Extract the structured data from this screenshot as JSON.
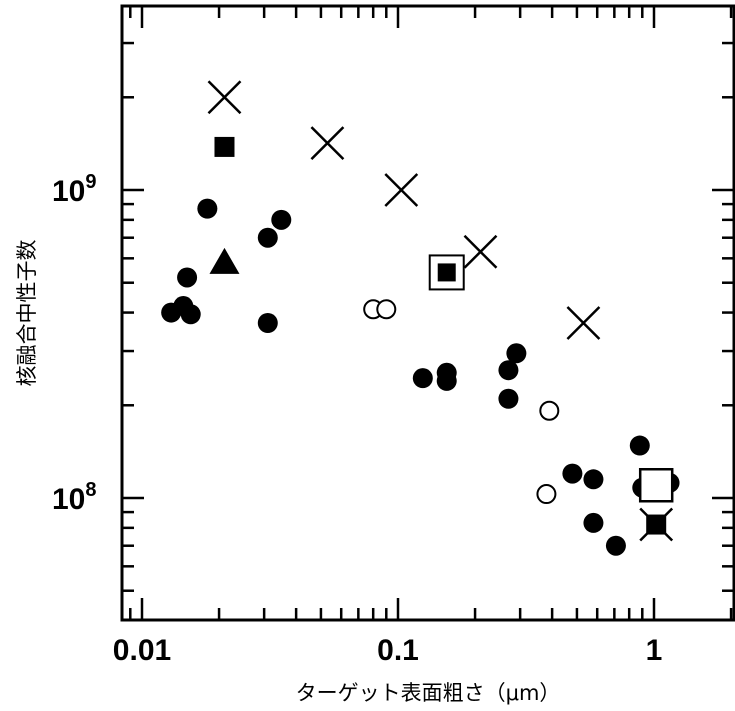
{
  "chart_data": {
    "type": "scatter",
    "title": "",
    "xlabel": "ターゲット表面粗さ（μm）",
    "ylabel": "核融合中性子数",
    "x_scale": "log",
    "y_scale": "log",
    "xlim": [
      0.009,
      2.0
    ],
    "ylim": [
      45000000,
      7000000000
    ],
    "grid": false,
    "x_ticks": [
      {
        "value": 0.01,
        "label": "0.01"
      },
      {
        "value": 0.1,
        "label": "0.1"
      },
      {
        "value": 1,
        "label": "1"
      }
    ],
    "y_ticks": [
      {
        "value": 100000000,
        "base": "10",
        "exp": "8"
      },
      {
        "value": 1000000000,
        "base": "10",
        "exp": "9"
      }
    ],
    "series": [
      {
        "marker": "filled-circle",
        "color": "#000000",
        "points": [
          [
            0.013,
            400000000
          ],
          [
            0.0145,
            420000000
          ],
          [
            0.015,
            520000000
          ],
          [
            0.0155,
            395000000
          ],
          [
            0.018,
            870000000
          ],
          [
            0.031,
            700000000
          ],
          [
            0.035,
            800000000
          ],
          [
            0.031,
            370000000
          ],
          [
            0.125,
            245000000
          ],
          [
            0.155,
            240000000
          ],
          [
            0.155,
            255000000
          ],
          [
            0.27,
            260000000
          ],
          [
            0.29,
            295000000
          ],
          [
            0.27,
            210000000
          ],
          [
            0.48,
            120000000
          ],
          [
            0.58,
            115000000
          ],
          [
            0.58,
            83000000
          ],
          [
            0.71,
            70000000
          ],
          [
            0.88,
            148000000
          ],
          [
            0.9,
            108000000
          ],
          [
            1.15,
            112000000
          ]
        ]
      },
      {
        "marker": "open-circle",
        "color": "#000000",
        "points": [
          [
            0.08,
            410000000
          ],
          [
            0.09,
            410000000
          ],
          [
            0.39,
            192000000
          ],
          [
            0.38,
            103000000
          ]
        ]
      },
      {
        "marker": "x",
        "color": "#000000",
        "points": [
          [
            0.021,
            2000000000
          ],
          [
            0.053,
            1420000000
          ],
          [
            0.103,
            1000000000
          ],
          [
            0.21,
            630000000
          ],
          [
            0.53,
            370000000
          ],
          [
            1.02,
            82000000
          ]
        ]
      },
      {
        "marker": "filled-square",
        "color": "#000000",
        "points": [
          [
            0.021,
            1380000000
          ],
          [
            1.02,
            82000000
          ]
        ]
      },
      {
        "marker": "boxed-filled-square",
        "color": "#000000",
        "points": [
          [
            0.155,
            540000000
          ]
        ]
      },
      {
        "marker": "open-square",
        "color": "#000000",
        "points": [
          [
            1.02,
            110000000
          ]
        ]
      },
      {
        "marker": "filled-triangle",
        "color": "#000000",
        "points": [
          [
            0.021,
            580000000
          ]
        ]
      }
    ]
  }
}
